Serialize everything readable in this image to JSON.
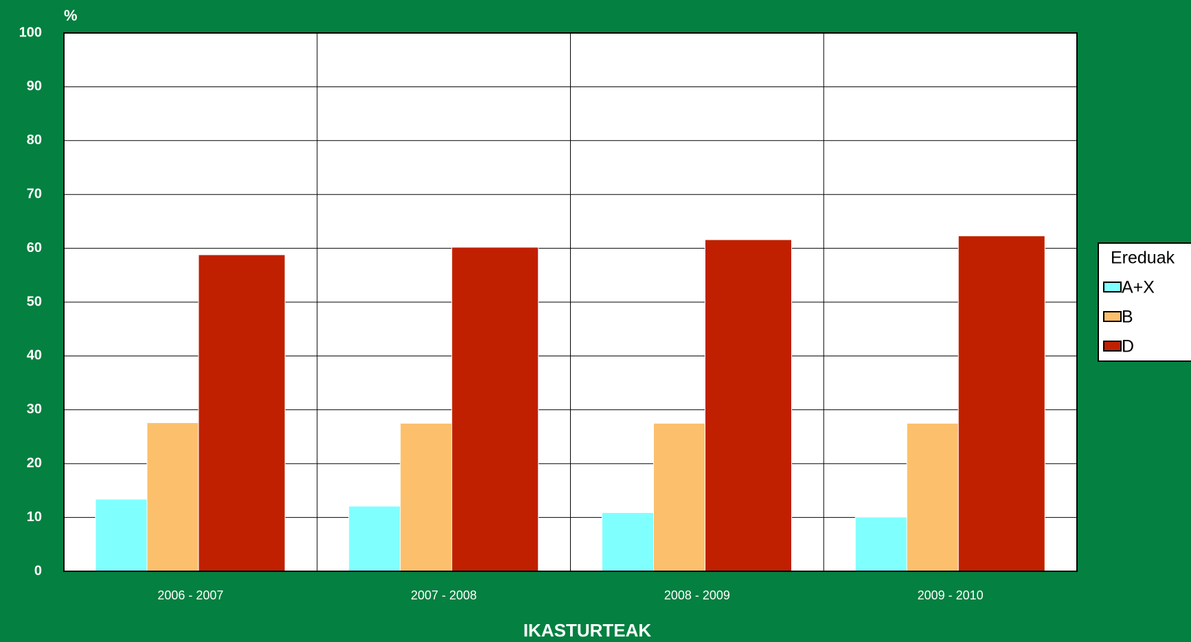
{
  "chart_data": {
    "type": "bar",
    "title": "%",
    "x_label": "IKASTURTEAK",
    "categories": [
      "2006 - 2007",
      "2007 - 2008",
      "2008 - 2009",
      "2009 - 2010"
    ],
    "series": [
      {
        "name": "A+X",
        "color": "#80ffff",
        "values": [
          13.4,
          12.1,
          10.9,
          10.0
        ]
      },
      {
        "name": "B",
        "color": "#fcc06c",
        "values": [
          27.6,
          27.5,
          27.5,
          27.5
        ]
      },
      {
        "name": "D",
        "color": "#c02000",
        "values": [
          58.8,
          60.2,
          61.6,
          62.3
        ]
      }
    ],
    "legend_title": "Ereduak",
    "legend": "right",
    "ylim": [
      0,
      100
    ],
    "yticks": [
      0,
      10,
      20,
      30,
      40,
      50,
      60,
      70,
      80,
      90,
      100
    ],
    "grid": true
  }
}
